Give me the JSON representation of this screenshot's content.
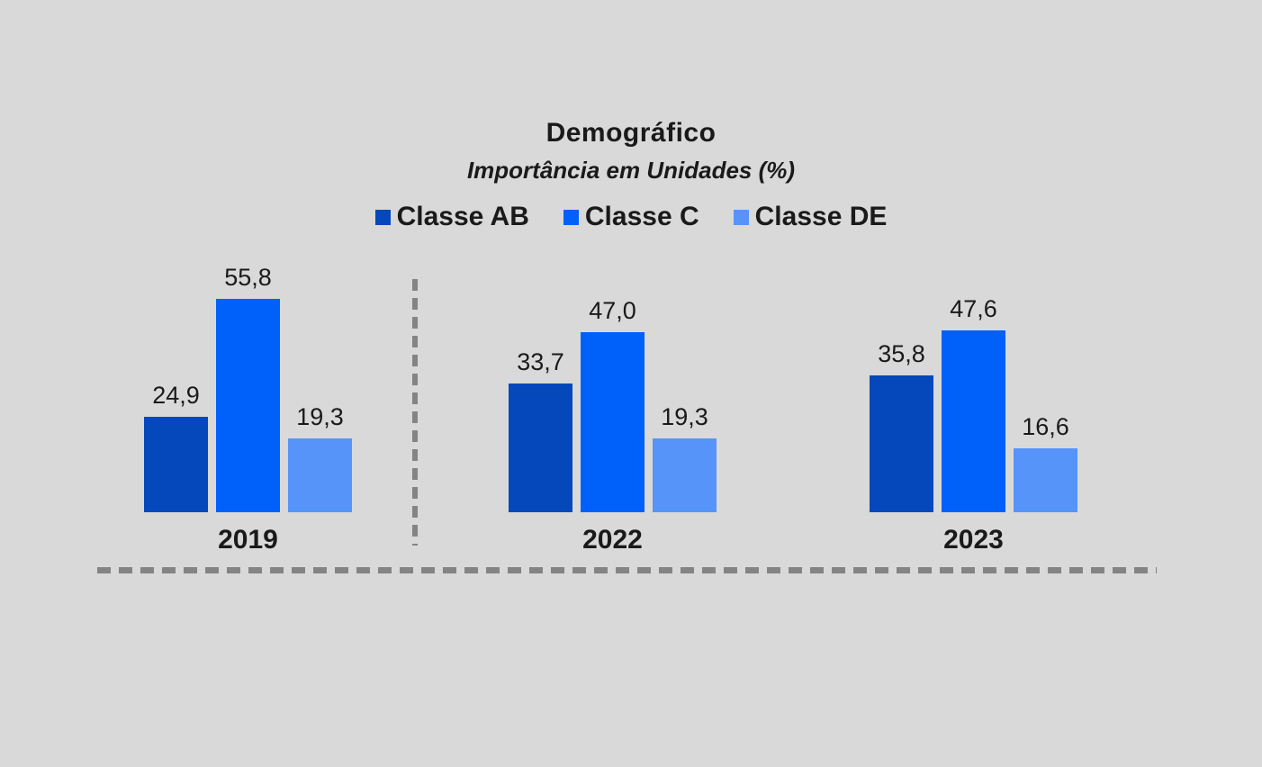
{
  "title": "Demográfico",
  "subtitle": "Importância em Unidades (%)",
  "colors": {
    "background": "#D9D9D9",
    "text": "#1A1A1A",
    "divider_dash": "#848484",
    "classe_ab": "#0448BC",
    "classe_c": "#0060FA",
    "classe_de": "#5694FA"
  },
  "chart_data": {
    "type": "bar",
    "title": "Demográfico",
    "subtitle": "Importância em Unidades (%)",
    "categories": [
      "2019",
      "2022",
      "2023"
    ],
    "series": [
      {
        "name": "Classe AB",
        "color": "#0448BC",
        "values": [
          24.9,
          33.7,
          35.8
        ],
        "labels": [
          "24,9",
          "33,7",
          "35,8"
        ]
      },
      {
        "name": "Classe C",
        "color": "#0060FA",
        "values": [
          55.8,
          47.0,
          47.6
        ],
        "labels": [
          "55,8",
          "47,0",
          "47,6"
        ]
      },
      {
        "name": "Classe DE",
        "color": "#5694FA",
        "values": [
          19.3,
          19.3,
          16.6
        ],
        "labels": [
          "19,3",
          "19,3",
          "16,6"
        ]
      }
    ],
    "value_format": "decimal-comma",
    "ylim": [
      0,
      60
    ],
    "legend_position": "top",
    "grid": false,
    "axes_visible": false,
    "annotations": [
      "vertical dashed divider between 2019 and 2022 groups",
      "horizontal dashed line below category labels"
    ]
  }
}
